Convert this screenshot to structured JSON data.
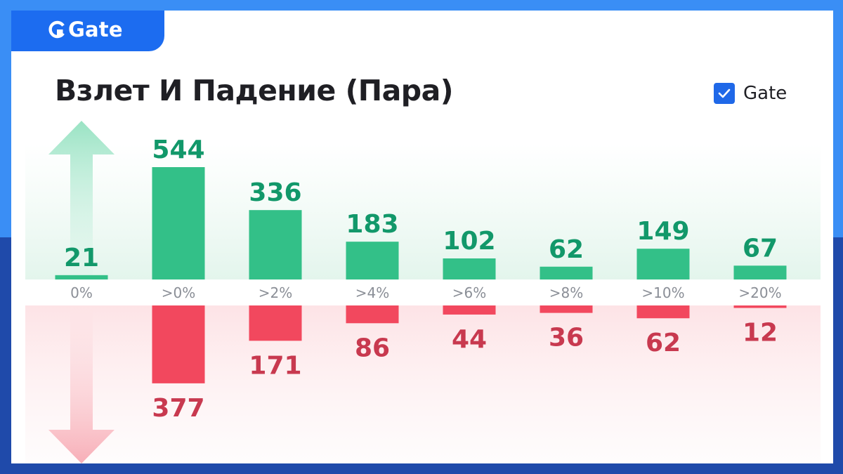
{
  "brand": {
    "name": "Gate"
  },
  "title": "Взлет И Падение (Пара)",
  "legend": {
    "label": "Gate",
    "checked": true,
    "color": "#1f68e8"
  },
  "colors": {
    "frame_top": "#3a8ef5",
    "frame_bottom": "#1f4aaa",
    "brand": "#1c6cf0",
    "up_bar": "#33c088",
    "up_text": "#12986a",
    "down_bar": "#f2485e",
    "down_text": "#c8394f"
  },
  "chart_data": {
    "type": "bar",
    "title": "Взлет И Падение (Пара)",
    "categories": [
      "0%",
      ">0%",
      ">2%",
      ">4%",
      ">6%",
      ">8%",
      ">10%",
      ">20%"
    ],
    "series": [
      {
        "direction": "up",
        "values": [
          21,
          544,
          336,
          183,
          102,
          62,
          149,
          67
        ]
      },
      {
        "direction": "down",
        "values": [
          0,
          377,
          171,
          86,
          44,
          36,
          62,
          12
        ]
      }
    ],
    "grid": false,
    "legend_position": "top-right",
    "legend": [
      "Gate"
    ]
  }
}
